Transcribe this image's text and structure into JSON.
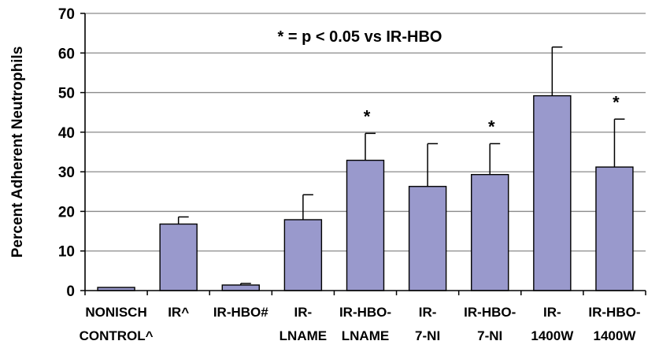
{
  "chart_data": {
    "type": "bar",
    "ylabel": "Percent Adherent Neutrophils",
    "ylim": [
      0,
      70
    ],
    "yticks": [
      0,
      10,
      20,
      30,
      40,
      50,
      60,
      70
    ],
    "grid": true,
    "annotation": "* = p < 0.05 vs IR-HBO",
    "significance_marker": "*",
    "bar_color": "#9999cc",
    "categories": [
      {
        "lines": [
          "NONISCH",
          "CONTROL^"
        ],
        "value": 0.8,
        "error": 0,
        "significant": false
      },
      {
        "lines": [
          "IR^"
        ],
        "value": 16.8,
        "error": 1.8,
        "significant": false
      },
      {
        "lines": [
          "IR-HBO#"
        ],
        "value": 1.4,
        "error": 0.4,
        "significant": false
      },
      {
        "lines": [
          "IR-",
          "LNAME"
        ],
        "value": 17.9,
        "error": 6.3,
        "significant": false
      },
      {
        "lines": [
          "IR-HBO-",
          "LNAME"
        ],
        "value": 32.9,
        "error": 6.8,
        "significant": true
      },
      {
        "lines": [
          "IR-",
          "7-NI"
        ],
        "value": 26.3,
        "error": 10.8,
        "significant": false
      },
      {
        "lines": [
          "IR-HBO-",
          "7-NI"
        ],
        "value": 29.3,
        "error": 7.8,
        "significant": true
      },
      {
        "lines": [
          "IR-",
          "1400W"
        ],
        "value": 49.2,
        "error": 12.3,
        "significant": false
      },
      {
        "lines": [
          "IR-HBO-",
          "1400W"
        ],
        "value": 31.2,
        "error": 12.1,
        "significant": true
      }
    ]
  }
}
